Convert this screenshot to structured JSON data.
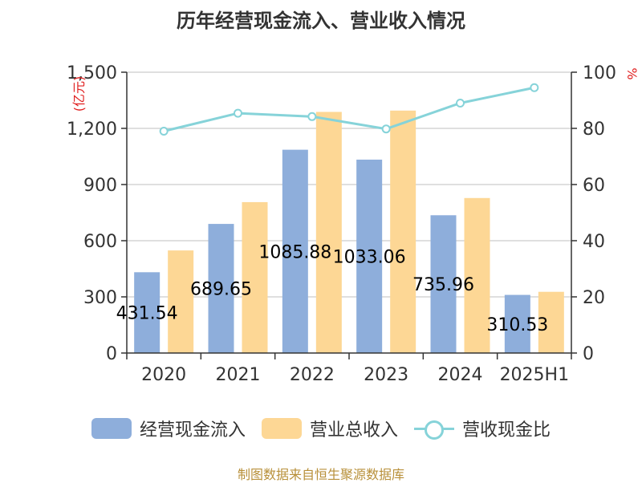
{
  "chart_data": {
    "type": "bar",
    "title": "历年经营现金流入、营业收入情况",
    "categories": [
      "2020",
      "2021",
      "2022",
      "2023",
      "2024",
      "2025H1"
    ],
    "left_axis": {
      "label": "(亿元)",
      "ylim": [
        0,
        1500
      ],
      "ticks": [
        "0",
        "300",
        "600",
        "900",
        "1,200",
        "1,500"
      ],
      "tick_values": [
        0,
        300,
        600,
        900,
        1200,
        1500
      ]
    },
    "right_axis": {
      "label": "%",
      "ylim": [
        0,
        100
      ],
      "ticks": [
        "0",
        "20",
        "40",
        "60",
        "80",
        "100"
      ],
      "tick_values": [
        0,
        20,
        40,
        60,
        80,
        100
      ]
    },
    "grid": true,
    "legend_position": "bottom",
    "series": [
      {
        "name": "经营现金流入",
        "kind": "bar",
        "axis": "left",
        "color": "#8eaedb",
        "values": [
          431.54,
          689.65,
          1085.88,
          1033.06,
          735.96,
          310.53
        ],
        "labels": [
          "431.54",
          "689.65",
          "1085.88",
          "1033.06",
          "735.96",
          "310.53"
        ]
      },
      {
        "name": "营业总收入",
        "kind": "bar",
        "axis": "left",
        "color": "#fdd795",
        "values": [
          548,
          806,
          1288,
          1295,
          828,
          327
        ]
      },
      {
        "name": "营收现金比",
        "kind": "line",
        "axis": "right",
        "color": "#86d3d9",
        "values": [
          79,
          85.4,
          84.2,
          79.8,
          89,
          94.5
        ]
      }
    ]
  },
  "footer": {
    "source": "制图数据来自恒生聚源数据库"
  }
}
